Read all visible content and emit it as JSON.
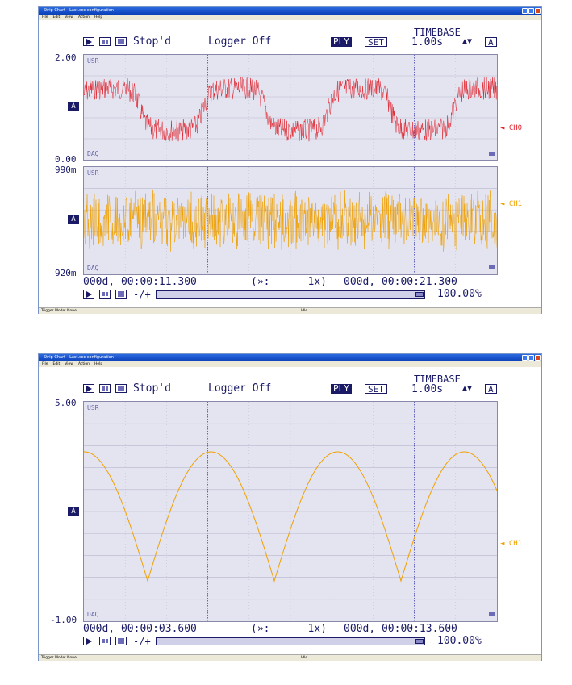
{
  "window1": {
    "title": "Strip Chart - Last.scc configuration",
    "menu": [
      "File",
      "Edit",
      "View",
      "Action",
      "Help"
    ],
    "state": "Stop'd",
    "logger": "Logger Off",
    "ply": "PLY",
    "set": "SET",
    "timebase_label": "TIMEBASE",
    "timebase_value": "1.00s",
    "timebase_auto": "A",
    "ch0": {
      "ymax": "2.00",
      "ymin": "0.00",
      "usr": "USR",
      "daq": "DAQ",
      "a": "A",
      "name": "CH0",
      "color": "#e0202a"
    },
    "ch1": {
      "ymax": "990m",
      "ymin": "920m",
      "usr": "USR",
      "daq": "DAQ",
      "a": "A",
      "name": "CH1",
      "color": "#f0a000"
    },
    "time_left": "000d, 00:00:11.300",
    "speed": "(»:      1x)",
    "time_right": "000d, 00:00:21.300",
    "zoom_label": "-/+",
    "zoom_value": "100.00%",
    "trigger": "Trigger Mode: None",
    "status": "Idle"
  },
  "window2": {
    "title": "Strip Chart - Last.scc configuration",
    "menu": [
      "File",
      "Edit",
      "View",
      "Action",
      "Help"
    ],
    "state": "Stop'd",
    "logger": "Logger Off",
    "ply": "PLY",
    "set": "SET",
    "timebase_label": "TIMEBASE",
    "timebase_value": "1.00s",
    "timebase_auto": "A",
    "ch1": {
      "ymax": "5.00",
      "ymin": "-1.00",
      "usr": "USR",
      "daq": "DAQ",
      "a": "A",
      "name": "CH1",
      "color": "#f0a000"
    },
    "time_left": "000d, 00:00:03.600",
    "speed": "(»:      1x)",
    "time_right": "000d, 00:00:13.600",
    "zoom_label": "-/+",
    "zoom_value": "100.00%",
    "trigger": "Trigger Mode: None",
    "status": "Idle"
  }
}
